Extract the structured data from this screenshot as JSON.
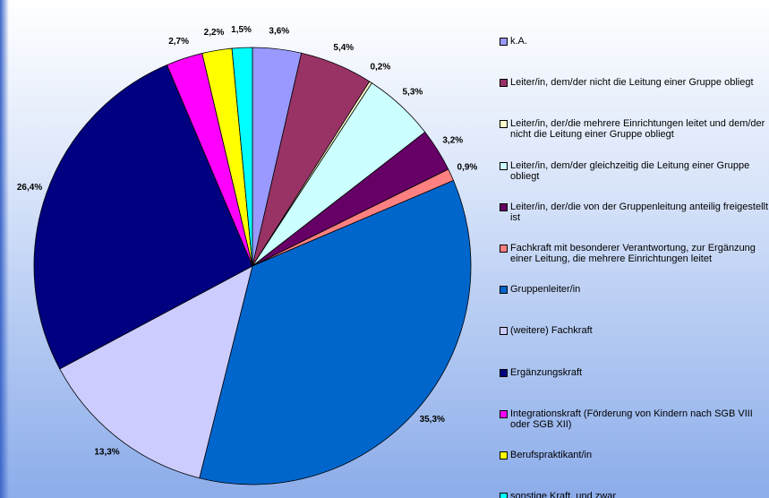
{
  "chart_data": {
    "type": "pie",
    "categories": [
      "k.A.",
      "Leiter/in, dem/der nicht die Leitung einer Gruppe obliegt",
      "Leiter/in, der/die mehrere Einrichtungen leitet und dem/der nicht die Leitung einer Gruppe obliegt",
      "Leiter/in, dem/der gleichzeitig die Leitung einer Gruppe obliegt",
      "Leiter/in, der/die von der Gruppenleitung anteilig freigestellt ist",
      "Fachkraft mit besonderer Verantwortung, zur Ergänzung einer Leitung, die mehrere Einrichtungen leitet",
      "Gruppenleiter/in",
      "(weitere) Fachkraft",
      "Ergänzungskraft",
      "Integrationskraft (Förderung von Kindern nach SGB VIII oder SGB XII)",
      "Berufspraktikant/in",
      "sonstige Kraft, und zwar"
    ],
    "values": [
      3.6,
      5.4,
      0.2,
      5.3,
      3.2,
      0.9,
      35.3,
      13.3,
      26.4,
      2.7,
      2.2,
      1.5
    ],
    "value_labels": [
      "3,6%",
      "5,4%",
      "0,2%",
      "5,3%",
      "3,2%",
      "0,9%",
      "35,3%",
      "13,3%",
      "26,4%",
      "2,7%",
      "2,2%",
      "1,5%"
    ],
    "colors": [
      "#9999ff",
      "#993366",
      "#ffffcc",
      "#ccffff",
      "#660066",
      "#ff8080",
      "#0066cc",
      "#ccccff",
      "#000080",
      "#ff00ff",
      "#ffff00",
      "#00ffff"
    ],
    "legend": "right"
  }
}
